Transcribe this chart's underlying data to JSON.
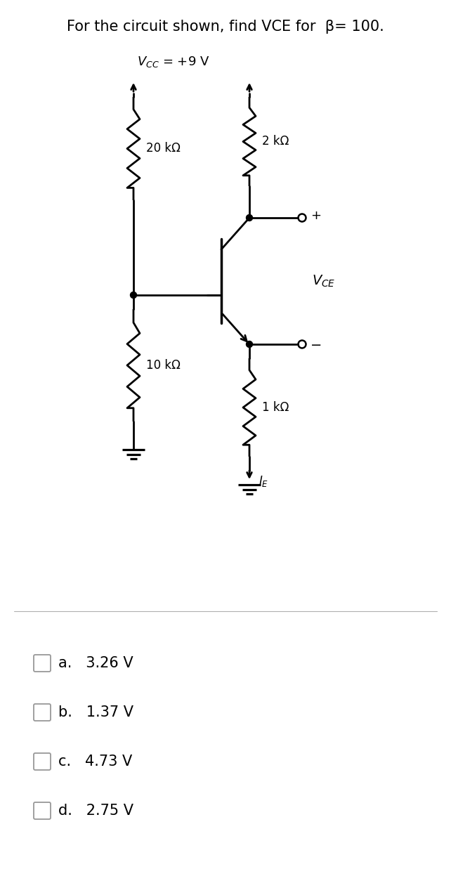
{
  "title": "For the circuit shown, find VCE for  β= 100.",
  "title_fontsize": 15,
  "vcc_label": "$V_{CC}$ = +9 V",
  "r1_label": "20 kΩ",
  "r2_label": "2 kΩ",
  "r3_label": "10 kΩ",
  "r4_label": "1 kΩ",
  "vce_label": "$V_{CE}$",
  "ie_label": "$I_E$",
  "choices": [
    "a.   3.26 V",
    "b.   1.37 V",
    "c.   4.73 V",
    "d.   2.75 V"
  ],
  "line_color": "#000000",
  "bg_color": "#ffffff",
  "fig_width": 6.42,
  "fig_height": 12.64,
  "dpi": 100
}
